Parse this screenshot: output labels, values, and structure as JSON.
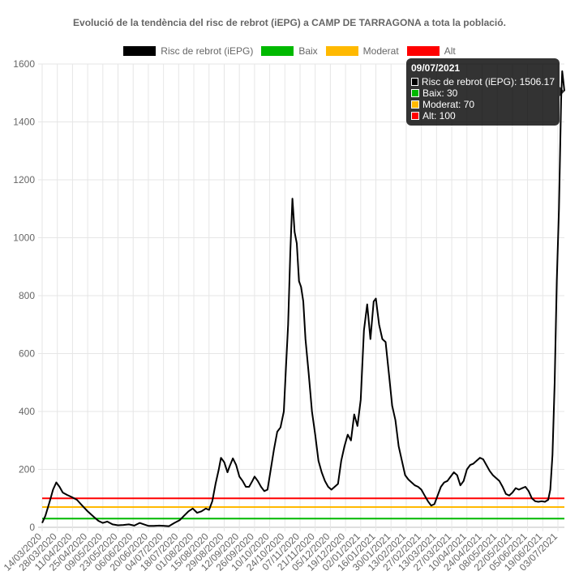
{
  "chart_data": {
    "type": "line",
    "title": "Evolució de la tendència del risc de rebrot (iEPG) a CAMP DE TARRAGONA a tota la població.",
    "ylim": [
      0,
      1600
    ],
    "yticks": [
      0,
      200,
      400,
      600,
      800,
      1000,
      1200,
      1400,
      1600
    ],
    "date_start": "14/03/2020",
    "date_end": "09/07/2021",
    "xtick_labels": [
      "14/03/2020",
      "28/03/2020",
      "11/04/2020",
      "25/04/2020",
      "09/05/2020",
      "23/05/2020",
      "06/06/2020",
      "20/06/2020",
      "04/07/2020",
      "18/07/2020",
      "01/08/2020",
      "15/08/2020",
      "29/08/2020",
      "12/09/2020",
      "26/09/2020",
      "10/10/2020",
      "24/10/2020",
      "07/11/2020",
      "21/11/2020",
      "05/12/2020",
      "19/12/2020",
      "02/01/2021",
      "16/01/2021",
      "30/01/2021",
      "13/02/2021",
      "27/02/2021",
      "13/03/2021",
      "27/03/2021",
      "10/04/2021",
      "24/04/2021",
      "08/05/2021",
      "22/05/2021",
      "05/06/2021",
      "19/06/2021",
      "03/07/2021"
    ],
    "grid": true,
    "legend_position": "top",
    "series": [
      {
        "name": "Risc de rebrot (iEPG)",
        "color": "#000000",
        "points": [
          [
            "14/03/2020",
            15
          ],
          [
            "17/03/2020",
            40
          ],
          [
            "21/03/2020",
            90
          ],
          [
            "24/03/2020",
            130
          ],
          [
            "27/03/2020",
            155
          ],
          [
            "30/03/2020",
            140
          ],
          [
            "02/04/2020",
            120
          ],
          [
            "06/04/2020",
            112
          ],
          [
            "10/04/2020",
            105
          ],
          [
            "15/04/2020",
            95
          ],
          [
            "20/04/2020",
            75
          ],
          [
            "25/04/2020",
            55
          ],
          [
            "01/05/2020",
            35
          ],
          [
            "05/05/2020",
            22
          ],
          [
            "09/05/2020",
            15
          ],
          [
            "13/05/2020",
            20
          ],
          [
            "18/05/2020",
            10
          ],
          [
            "23/05/2020",
            7
          ],
          [
            "28/05/2020",
            8
          ],
          [
            "02/06/2020",
            10
          ],
          [
            "07/06/2020",
            6
          ],
          [
            "12/06/2020",
            15
          ],
          [
            "16/06/2020",
            10
          ],
          [
            "20/06/2020",
            5
          ],
          [
            "25/06/2020",
            5
          ],
          [
            "30/06/2020",
            6
          ],
          [
            "05/07/2020",
            5
          ],
          [
            "09/07/2020",
            4
          ],
          [
            "14/07/2020",
            15
          ],
          [
            "19/07/2020",
            25
          ],
          [
            "23/07/2020",
            40
          ],
          [
            "27/07/2020",
            55
          ],
          [
            "31/07/2020",
            65
          ],
          [
            "04/08/2020",
            50
          ],
          [
            "08/08/2020",
            55
          ],
          [
            "12/08/2020",
            65
          ],
          [
            "15/08/2020",
            60
          ],
          [
            "18/08/2020",
            90
          ],
          [
            "21/08/2020",
            150
          ],
          [
            "24/08/2020",
            200
          ],
          [
            "26/08/2020",
            240
          ],
          [
            "29/08/2020",
            225
          ],
          [
            "01/09/2020",
            190
          ],
          [
            "03/09/2020",
            210
          ],
          [
            "06/09/2020",
            238
          ],
          [
            "09/09/2020",
            215
          ],
          [
            "12/09/2020",
            175
          ],
          [
            "15/09/2020",
            160
          ],
          [
            "18/09/2020",
            140
          ],
          [
            "21/09/2020",
            140
          ],
          [
            "24/09/2020",
            160
          ],
          [
            "26/09/2020",
            175
          ],
          [
            "29/09/2020",
            160
          ],
          [
            "02/10/2020",
            140
          ],
          [
            "05/10/2020",
            125
          ],
          [
            "08/10/2020",
            130
          ],
          [
            "11/10/2020",
            200
          ],
          [
            "14/10/2020",
            270
          ],
          [
            "17/10/2020",
            330
          ],
          [
            "20/10/2020",
            345
          ],
          [
            "23/10/2020",
            400
          ],
          [
            "25/10/2020",
            550
          ],
          [
            "27/10/2020",
            700
          ],
          [
            "29/10/2020",
            950
          ],
          [
            "31/10/2020",
            1135
          ],
          [
            "02/11/2020",
            1020
          ],
          [
            "04/11/2020",
            980
          ],
          [
            "06/11/2020",
            850
          ],
          [
            "08/11/2020",
            830
          ],
          [
            "10/11/2020",
            780
          ],
          [
            "12/11/2020",
            650
          ],
          [
            "15/11/2020",
            530
          ],
          [
            "18/11/2020",
            400
          ],
          [
            "21/11/2020",
            320
          ],
          [
            "24/11/2020",
            230
          ],
          [
            "27/11/2020",
            190
          ],
          [
            "30/11/2020",
            160
          ],
          [
            "03/12/2020",
            140
          ],
          [
            "06/12/2020",
            130
          ],
          [
            "09/12/2020",
            140
          ],
          [
            "12/12/2020",
            150
          ],
          [
            "15/12/2020",
            230
          ],
          [
            "18/12/2020",
            280
          ],
          [
            "21/12/2020",
            320
          ],
          [
            "24/12/2020",
            300
          ],
          [
            "27/12/2020",
            390
          ],
          [
            "30/12/2020",
            350
          ],
          [
            "02/01/2021",
            440
          ],
          [
            "05/01/2021",
            680
          ],
          [
            "08/01/2021",
            770
          ],
          [
            "11/01/2021",
            650
          ],
          [
            "14/01/2021",
            780
          ],
          [
            "16/01/2021",
            790
          ],
          [
            "19/01/2021",
            700
          ],
          [
            "22/01/2021",
            650
          ],
          [
            "25/01/2021",
            640
          ],
          [
            "28/01/2021",
            530
          ],
          [
            "31/01/2021",
            420
          ],
          [
            "03/02/2021",
            370
          ],
          [
            "06/02/2021",
            280
          ],
          [
            "09/02/2021",
            230
          ],
          [
            "12/02/2021",
            180
          ],
          [
            "15/02/2021",
            165
          ],
          [
            "18/02/2021",
            155
          ],
          [
            "21/02/2021",
            145
          ],
          [
            "24/02/2021",
            140
          ],
          [
            "27/02/2021",
            130
          ],
          [
            "02/03/2021",
            110
          ],
          [
            "05/03/2021",
            90
          ],
          [
            "08/03/2021",
            75
          ],
          [
            "11/03/2021",
            80
          ],
          [
            "14/03/2021",
            110
          ],
          [
            "17/03/2021",
            140
          ],
          [
            "20/03/2021",
            155
          ],
          [
            "23/03/2021",
            160
          ],
          [
            "26/03/2021",
            175
          ],
          [
            "29/03/2021",
            190
          ],
          [
            "01/04/2021",
            180
          ],
          [
            "04/04/2021",
            145
          ],
          [
            "07/04/2021",
            160
          ],
          [
            "10/04/2021",
            200
          ],
          [
            "13/04/2021",
            215
          ],
          [
            "16/04/2021",
            220
          ],
          [
            "19/04/2021",
            230
          ],
          [
            "22/04/2021",
            240
          ],
          [
            "25/04/2021",
            235
          ],
          [
            "28/04/2021",
            215
          ],
          [
            "01/05/2021",
            195
          ],
          [
            "04/05/2021",
            180
          ],
          [
            "07/05/2021",
            170
          ],
          [
            "10/05/2021",
            160
          ],
          [
            "13/05/2021",
            140
          ],
          [
            "16/05/2021",
            115
          ],
          [
            "19/05/2021",
            110
          ],
          [
            "22/05/2021",
            120
          ],
          [
            "25/05/2021",
            135
          ],
          [
            "28/05/2021",
            130
          ],
          [
            "31/05/2021",
            135
          ],
          [
            "03/06/2021",
            140
          ],
          [
            "06/06/2021",
            125
          ],
          [
            "09/06/2021",
            100
          ],
          [
            "12/06/2021",
            90
          ],
          [
            "15/06/2021",
            88
          ],
          [
            "18/06/2021",
            90
          ],
          [
            "21/06/2021",
            88
          ],
          [
            "24/06/2021",
            95
          ],
          [
            "26/06/2021",
            130
          ],
          [
            "28/06/2021",
            250
          ],
          [
            "30/06/2021",
            500
          ],
          [
            "02/07/2021",
            850
          ],
          [
            "04/07/2021",
            1100
          ],
          [
            "06/07/2021",
            1480
          ],
          [
            "07/07/2021",
            1575
          ],
          [
            "08/07/2021",
            1540
          ],
          [
            "09/07/2021",
            1506.17
          ]
        ]
      },
      {
        "name": "Baix",
        "color": "#00b900",
        "value": 30
      },
      {
        "name": "Moderat",
        "color": "#ffb900",
        "value": 70
      },
      {
        "name": "Alt",
        "color": "#ff0000",
        "value": 100
      }
    ]
  },
  "tooltip": {
    "title": "09/07/2021",
    "rows": [
      {
        "label": "Risc de rebrot (iEPG): 1506.17",
        "color": "#000000"
      },
      {
        "label": "Baix: 30",
        "color": "#00b900"
      },
      {
        "label": "Moderat: 70",
        "color": "#ffb900"
      },
      {
        "label": "Alt: 100",
        "color": "#ff0000"
      }
    ]
  }
}
